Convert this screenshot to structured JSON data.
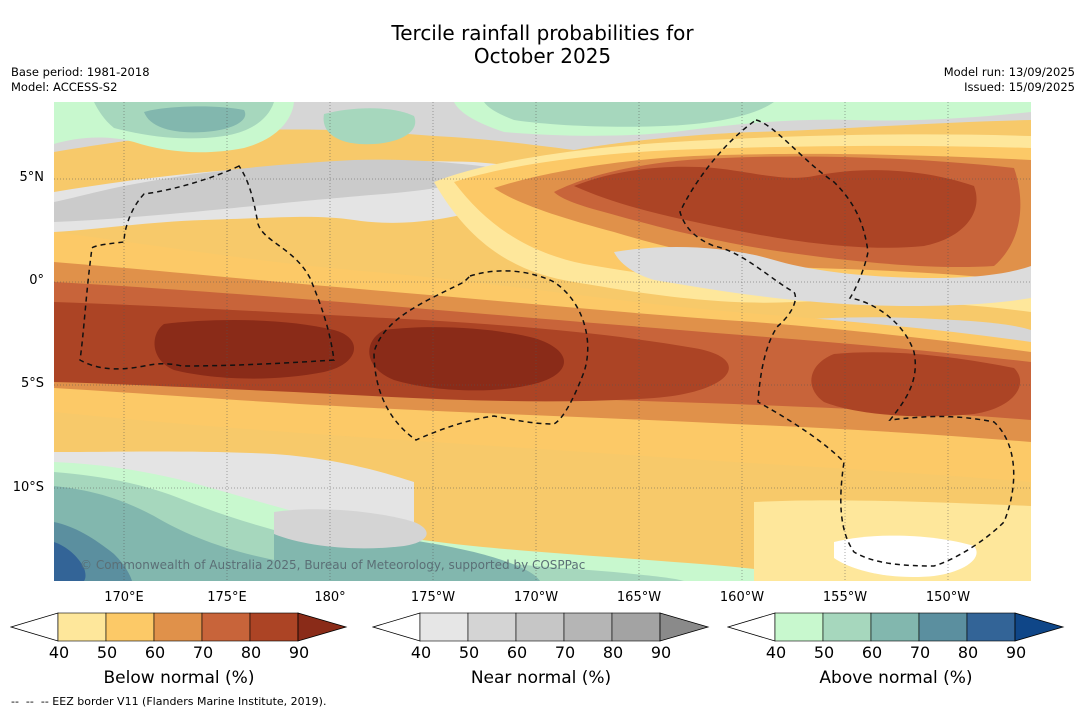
{
  "title_line1": "Tercile rainfall probabilities for",
  "title_line2": "October 2025",
  "base_period": "Base period: 1981-2018",
  "model": "Model: ACCESS-S2",
  "model_run": "Model run: 13/09/2025",
  "issued": "Issued: 15/09/2025",
  "copyright": "© Commonwealth of Australia 2025, Bureau of Meteorology, supported by COSPPac",
  "footnote": "--  --  -- EEZ border V11 (Flanders Marine Institute, 2019).",
  "lat_labels": [
    "5°N",
    "0°",
    "5°S",
    "10°S"
  ],
  "lon_labels": [
    "170°E",
    "175°E",
    "180°",
    "175°W",
    "170°W",
    "165°W",
    "160°W",
    "155°W",
    "150°W"
  ],
  "colorbars": [
    {
      "label": "Below normal (%)",
      "ticks": [
        "40",
        "50",
        "60",
        "70",
        "80",
        "90"
      ],
      "colors": [
        "#ffffff",
        "#fee79b",
        "#fcc967",
        "#e0914a",
        "#c8643a",
        "#ac4425",
        "#8a2b18"
      ]
    },
    {
      "label": "Near normal (%)",
      "ticks": [
        "40",
        "50",
        "60",
        "70",
        "80",
        "90"
      ],
      "colors": [
        "#ffffff",
        "#e6e6e6",
        "#d4d4d4",
        "#c6c6c6",
        "#b5b5b5",
        "#a3a3a3",
        "#8a8a8a"
      ]
    },
    {
      "label": "Above normal (%)",
      "ticks": [
        "40",
        "50",
        "60",
        "70",
        "80",
        "90"
      ],
      "colors": [
        "#ffffff",
        "#c8f8ce",
        "#a6d7bd",
        "#82b7ae",
        "#5b8f9f",
        "#336497",
        "#0f4688"
      ]
    }
  ]
}
